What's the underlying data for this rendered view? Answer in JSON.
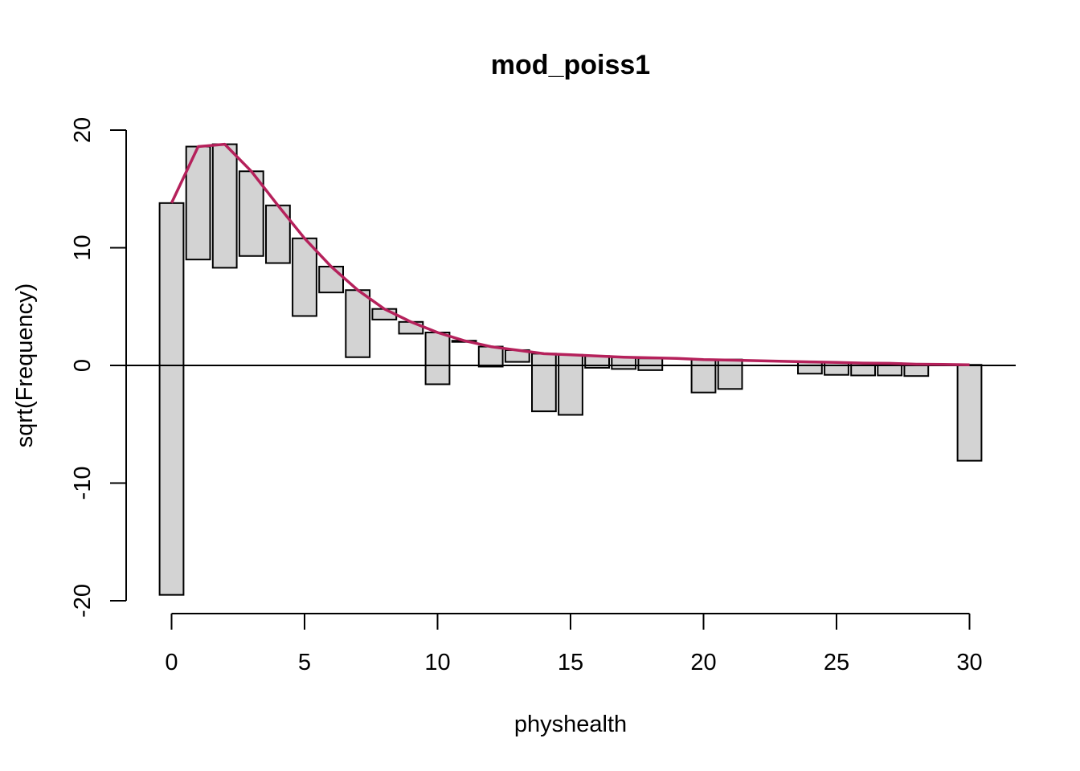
{
  "chart_data": {
    "type": "bar",
    "subtype": "hanging rootogram",
    "title": "mod_poiss1",
    "xlabel": "physhealth",
    "ylabel": "sqrt(Frequency)",
    "xlim": [
      -1,
      31
    ],
    "ylim": [
      -20,
      20
    ],
    "x_ticks": [
      0,
      5,
      10,
      15,
      20,
      25,
      30
    ],
    "y_ticks": [
      -20,
      -10,
      0,
      10,
      20
    ],
    "reference_line_y": 0,
    "bar_width": 0.9,
    "bars": [
      {
        "x": 0,
        "top": 13.8,
        "bottom": -19.5
      },
      {
        "x": 1,
        "top": 18.6,
        "bottom": 9.0
      },
      {
        "x": 2,
        "top": 18.8,
        "bottom": 8.3
      },
      {
        "x": 3,
        "top": 16.5,
        "bottom": 9.3
      },
      {
        "x": 4,
        "top": 13.6,
        "bottom": 8.7
      },
      {
        "x": 5,
        "top": 10.8,
        "bottom": 4.2
      },
      {
        "x": 6,
        "top": 8.4,
        "bottom": 6.2
      },
      {
        "x": 7,
        "top": 6.4,
        "bottom": 0.7
      },
      {
        "x": 8,
        "top": 4.8,
        "bottom": 3.9
      },
      {
        "x": 9,
        "top": 3.7,
        "bottom": 2.7
      },
      {
        "x": 10,
        "top": 2.8,
        "bottom": -1.6
      },
      {
        "x": 11,
        "top": 2.1,
        "bottom": 2.0
      },
      {
        "x": 12,
        "top": 1.6,
        "bottom": -0.1
      },
      {
        "x": 13,
        "top": 1.3,
        "bottom": 0.3
      },
      {
        "x": 14,
        "top": 1.0,
        "bottom": -3.9
      },
      {
        "x": 15,
        "top": 0.9,
        "bottom": -4.2
      },
      {
        "x": 16,
        "top": 0.8,
        "bottom": -0.2
      },
      {
        "x": 17,
        "top": 0.7,
        "bottom": -0.3
      },
      {
        "x": 18,
        "top": 0.6,
        "bottom": -0.4
      },
      {
        "x": 20,
        "top": 0.5,
        "bottom": -2.3
      },
      {
        "x": 21,
        "top": 0.5,
        "bottom": -2.0
      },
      {
        "x": 24,
        "top": 0.3,
        "bottom": -0.7
      },
      {
        "x": 25,
        "top": 0.25,
        "bottom": -0.8
      },
      {
        "x": 26,
        "top": 0.2,
        "bottom": -0.85
      },
      {
        "x": 27,
        "top": 0.18,
        "bottom": -0.85
      },
      {
        "x": 28,
        "top": 0.1,
        "bottom": -0.9
      },
      {
        "x": 30,
        "top": 0.05,
        "bottom": -8.1
      }
    ],
    "fitted_line": {
      "x": [
        0,
        1,
        2,
        3,
        4,
        5,
        6,
        7,
        8,
        9,
        10,
        11,
        12,
        13,
        14,
        15,
        16,
        17,
        18,
        19,
        20,
        21,
        22,
        23,
        24,
        25,
        26,
        27,
        28,
        29,
        30
      ],
      "y": [
        13.8,
        18.6,
        18.8,
        16.5,
        13.6,
        10.8,
        8.4,
        6.4,
        4.8,
        3.7,
        2.8,
        2.1,
        1.6,
        1.3,
        1.0,
        0.9,
        0.8,
        0.7,
        0.65,
        0.6,
        0.5,
        0.45,
        0.4,
        0.35,
        0.3,
        0.25,
        0.2,
        0.18,
        0.1,
        0.08,
        0.05
      ]
    },
    "colors": {
      "bar_fill": "#d3d3d3",
      "bar_stroke": "#000000",
      "fitted_line": "#b5215b"
    }
  }
}
